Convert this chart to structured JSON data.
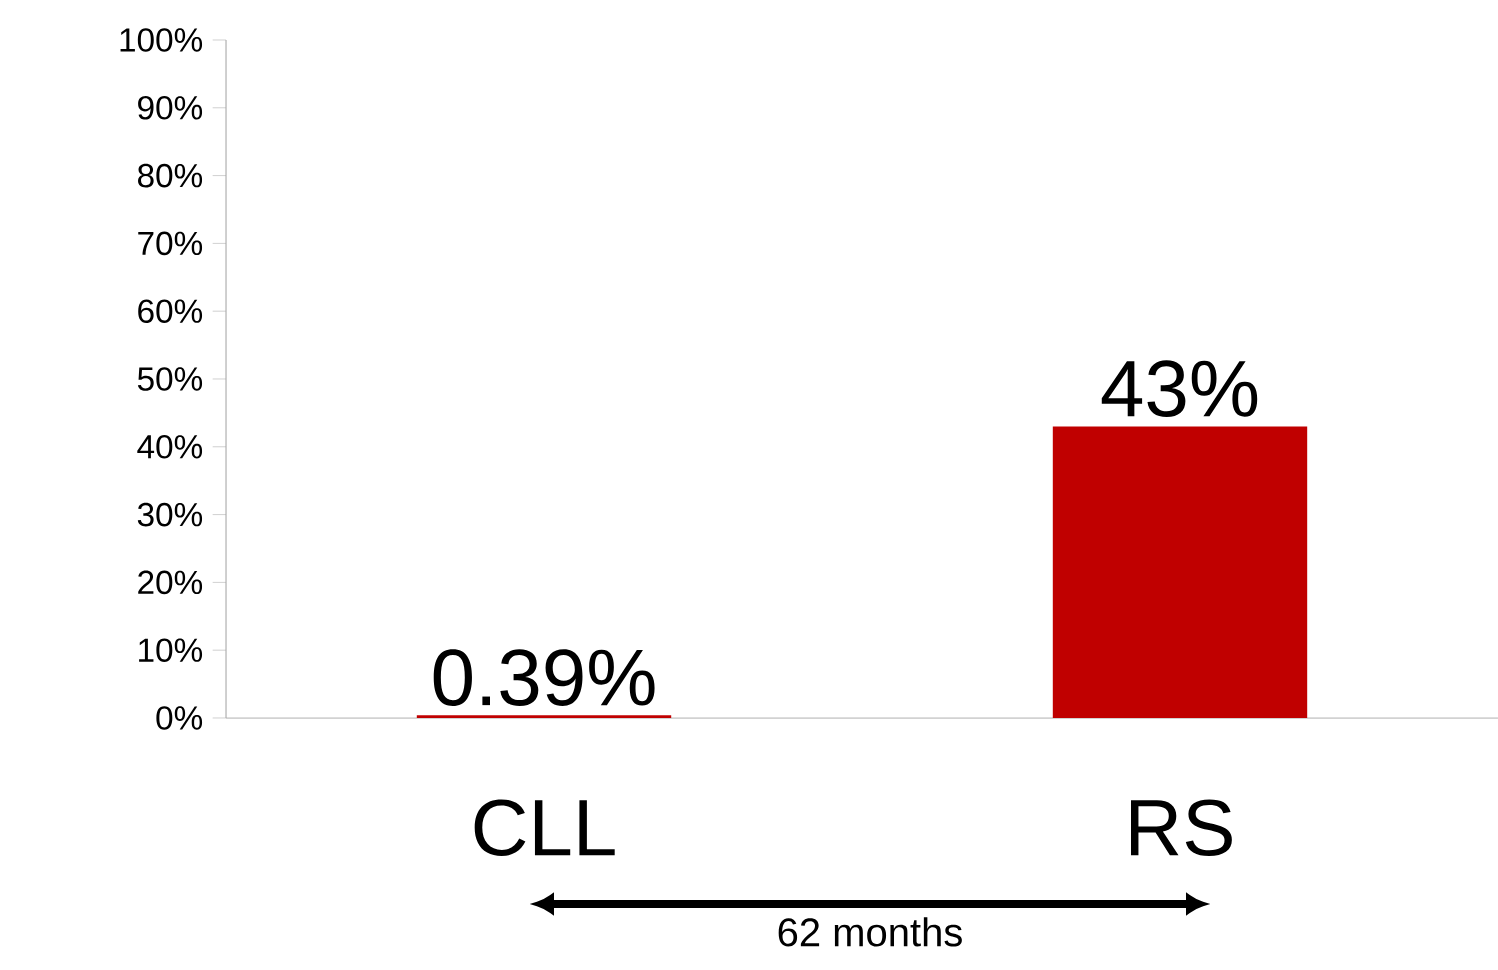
{
  "chart_data": {
    "type": "bar",
    "categories": [
      "CLL",
      "RS"
    ],
    "values": [
      0.39,
      43
    ],
    "value_labels": [
      "0.39%",
      "43%"
    ],
    "color": "#c00000",
    "ylim": [
      0,
      100
    ],
    "yticks": [
      {
        "value": 0,
        "label": "0%"
      },
      {
        "value": 10,
        "label": "10%"
      },
      {
        "value": 20,
        "label": "20%"
      },
      {
        "value": 30,
        "label": "30%"
      },
      {
        "value": 40,
        "label": "40%"
      },
      {
        "value": 50,
        "label": "50%"
      },
      {
        "value": 60,
        "label": "60%"
      },
      {
        "value": 70,
        "label": "70%"
      },
      {
        "value": 80,
        "label": "80%"
      },
      {
        "value": 90,
        "label": "90%"
      },
      {
        "value": 100,
        "label": "100%"
      }
    ],
    "annotations": [
      "62 months"
    ]
  }
}
